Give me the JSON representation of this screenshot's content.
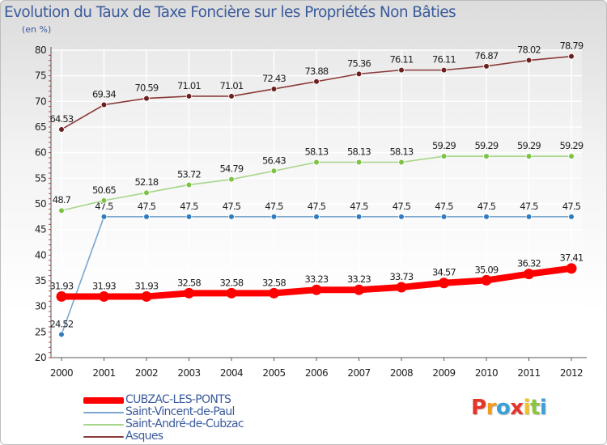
{
  "title": "Evolution du Taux de Taxe Foncière sur les Propriétés Non Bâties",
  "subtitle": "(en %)",
  "logo": "Proxiti",
  "colors": {
    "grid": "#ffffff",
    "axis": "#555555",
    "tick_text": "#222222",
    "title_text": "#3b5b9c",
    "logo_letters": [
      "#e7342b",
      "#f39b1e",
      "#3aa0d8",
      "#e7342b",
      "#f3c21e",
      "#8cc63e",
      "#3aa0d8"
    ]
  },
  "chart_data": {
    "type": "line",
    "title": "Evolution du Taux de Taxe Foncière sur les Propriétés Non Bâties",
    "ylabel": "(en %)",
    "xlabel": "",
    "ylim": [
      20,
      80
    ],
    "yticks": [
      20,
      25,
      30,
      35,
      40,
      45,
      50,
      55,
      60,
      65,
      70,
      75,
      80
    ],
    "categories": [
      "2000",
      "2001",
      "2002",
      "2003",
      "2004",
      "2005",
      "2006",
      "2007",
      "2008",
      "2009",
      "2010",
      "2011",
      "2012"
    ],
    "legend_position": "bottom-left",
    "grid": true,
    "series": [
      {
        "name": "CUBZAC-LES-PONTS",
        "color": "#ff0000",
        "marker": "#ff0000",
        "bold": true,
        "values": [
          31.93,
          31.93,
          31.93,
          32.58,
          32.58,
          32.58,
          33.23,
          33.23,
          33.73,
          34.57,
          35.09,
          36.32,
          37.41
        ],
        "labels": [
          "31.93",
          "31.93",
          "31.93",
          "32.58",
          "32.58",
          "32.58",
          "33.23",
          "33.23",
          "33.73",
          "34.57",
          "35.09",
          "36.32",
          "37.41"
        ]
      },
      {
        "name": "Saint-Vincent-de-Paul",
        "color": "#7aa7cf",
        "marker": "#2f7cc0",
        "bold": false,
        "values": [
          24.52,
          47.5,
          47.5,
          47.5,
          47.5,
          47.5,
          47.5,
          47.5,
          47.5,
          47.5,
          47.5,
          47.5,
          47.5
        ],
        "labels": [
          "24.52",
          "47.5",
          "47.5",
          "47.5",
          "47.5",
          "47.5",
          "47.5",
          "47.5",
          "47.5",
          "47.5",
          "47.5",
          "47.5",
          "47.5"
        ]
      },
      {
        "name": "Saint-André-de-Cubzac",
        "color": "#a8d68a",
        "marker": "#7dc242",
        "bold": false,
        "values": [
          48.7,
          50.65,
          52.18,
          53.72,
          54.79,
          56.43,
          58.13,
          58.13,
          58.13,
          59.29,
          59.29,
          59.29,
          59.29
        ],
        "labels": [
          "48.7",
          "50.65",
          "52.18",
          "53.72",
          "54.79",
          "56.43",
          "58.13",
          "58.13",
          "58.13",
          "59.29",
          "59.29",
          "59.29",
          "59.29"
        ]
      },
      {
        "name": "Asques",
        "color": "#8a3a3a",
        "marker": "#6b1f1f",
        "bold": false,
        "values": [
          64.53,
          69.34,
          70.59,
          71.01,
          71.01,
          72.43,
          73.88,
          75.36,
          76.11,
          76.11,
          76.87,
          78.02,
          78.79
        ],
        "labels": [
          "64.53",
          "69.34",
          "70.59",
          "71.01",
          "71.01",
          "72.43",
          "73.88",
          "75.36",
          "76.11",
          "76.11",
          "76.87",
          "78.02",
          "78.79"
        ]
      }
    ]
  }
}
